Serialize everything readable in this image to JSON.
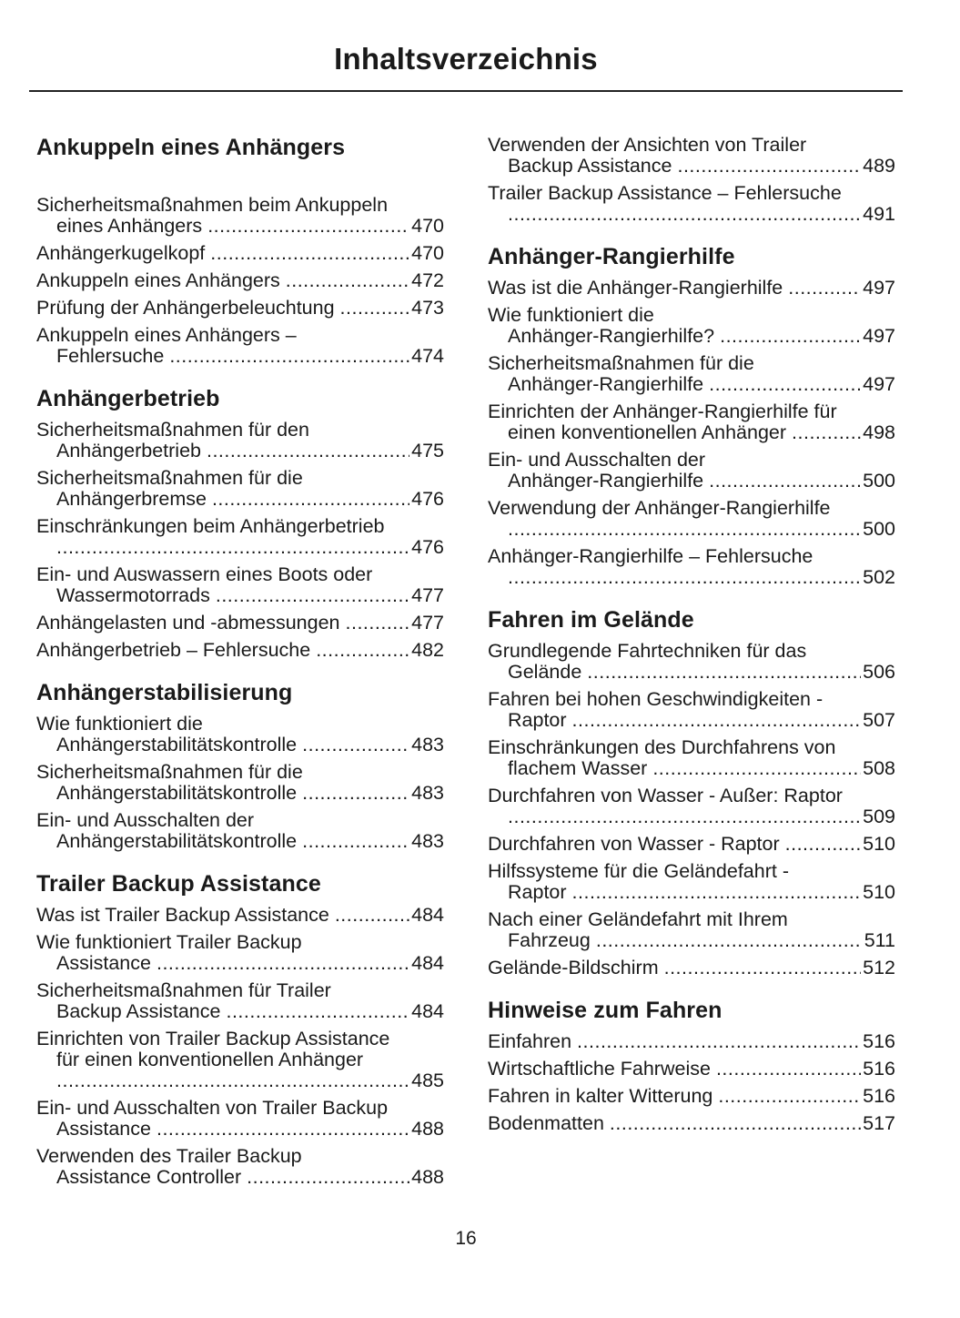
{
  "title": "Inhaltsverzeichnis",
  "page_number": "16",
  "left_column": [
    {
      "heading": "Ankuppeln eines Anhängers",
      "entries": [
        {
          "lines": [
            "Sicherheitsmaßnahmen beim Ankuppeln",
            "eines Anhängers"
          ],
          "page": "470"
        },
        {
          "lines": [
            "Anhängerkugelkopf"
          ],
          "page": "470"
        },
        {
          "lines": [
            "Ankuppeln eines Anhängers"
          ],
          "page": "472"
        },
        {
          "lines": [
            "Prüfung der Anhängerbeleuchtung"
          ],
          "page": "473"
        },
        {
          "lines": [
            "Ankuppeln eines Anhängers –",
            "Fehlersuche"
          ],
          "page": "474"
        }
      ]
    },
    {
      "heading": "Anhängerbetrieb",
      "entries": [
        {
          "lines": [
            "Sicherheitsmaßnahmen für den",
            "Anhängerbetrieb"
          ],
          "page": "475"
        },
        {
          "lines": [
            "Sicherheitsmaßnahmen für die",
            "Anhängerbremse"
          ],
          "page": "476"
        },
        {
          "lines": [
            "Einschränkungen beim Anhängerbetrieb",
            ""
          ],
          "page": "476"
        },
        {
          "lines": [
            "Ein- und Auswassern eines Boots oder",
            "Wassermotorrads"
          ],
          "page": "477"
        },
        {
          "lines": [
            "Anhängelasten und -abmessungen"
          ],
          "page": "477"
        },
        {
          "lines": [
            "Anhängerbetrieb – Fehlersuche"
          ],
          "page": "482"
        }
      ]
    },
    {
      "heading": "Anhängerstabilisierung",
      "entries": [
        {
          "lines": [
            "Wie funktioniert die",
            "Anhängerstabilitätskontrolle"
          ],
          "page": "483"
        },
        {
          "lines": [
            "Sicherheitsmaßnahmen für die",
            "Anhängerstabilitätskontrolle"
          ],
          "page": "483"
        },
        {
          "lines": [
            "Ein- und Ausschalten der",
            "Anhängerstabilitätskontrolle"
          ],
          "page": "483"
        }
      ]
    },
    {
      "heading": "Trailer Backup Assistance",
      "entries": [
        {
          "lines": [
            "Was ist Trailer Backup Assistance"
          ],
          "page": "484"
        },
        {
          "lines": [
            "Wie funktioniert Trailer Backup",
            "Assistance"
          ],
          "page": "484"
        },
        {
          "lines": [
            "Sicherheitsmaßnahmen für Trailer",
            "Backup Assistance"
          ],
          "page": "484"
        },
        {
          "lines": [
            "Einrichten von Trailer Backup Assistance",
            "für einen konventionellen Anhänger",
            ""
          ],
          "page": "485"
        },
        {
          "lines": [
            "Ein- und Ausschalten von Trailer Backup",
            "Assistance"
          ],
          "page": "488"
        },
        {
          "lines": [
            "Verwenden des Trailer Backup",
            "Assistance Controller"
          ],
          "page": "488"
        }
      ]
    }
  ],
  "right_column": [
    {
      "heading": "",
      "entries": [
        {
          "lines": [
            "Verwenden der Ansichten von Trailer",
            "Backup Assistance"
          ],
          "page": "489"
        },
        {
          "lines": [
            "Trailer Backup Assistance – Fehlersuche",
            ""
          ],
          "page": "491"
        }
      ]
    },
    {
      "heading": "Anhänger-Rangierhilfe",
      "entries": [
        {
          "lines": [
            "Was ist die Anhänger-Rangierhilfe"
          ],
          "page": "497"
        },
        {
          "lines": [
            "Wie funktioniert die",
            "Anhänger-Rangierhilfe?"
          ],
          "page": "497"
        },
        {
          "lines": [
            "Sicherheitsmaßnahmen für die",
            "Anhänger-Rangierhilfe"
          ],
          "page": "497"
        },
        {
          "lines": [
            "Einrichten der Anhänger-Rangierhilfe für",
            "einen konventionellen Anhänger"
          ],
          "page": "498"
        },
        {
          "lines": [
            "Ein- und Ausschalten der",
            "Anhänger-Rangierhilfe"
          ],
          "page": "500"
        },
        {
          "lines": [
            "Verwendung der Anhänger-Rangierhilfe",
            ""
          ],
          "page": "500"
        },
        {
          "lines": [
            "Anhänger-Rangierhilfe – Fehlersuche",
            ""
          ],
          "page": "502"
        }
      ]
    },
    {
      "heading": "Fahren im Gelände",
      "entries": [
        {
          "lines": [
            "Grundlegende Fahrtechniken für das",
            "Gelände"
          ],
          "page": "506"
        },
        {
          "lines": [
            "Fahren bei hohen Geschwindigkeiten -",
            "Raptor"
          ],
          "page": "507"
        },
        {
          "lines": [
            "Einschränkungen des Durchfahrens von",
            "flachem Wasser"
          ],
          "page": "508"
        },
        {
          "lines": [
            "Durchfahren von Wasser - Außer: Raptor",
            ""
          ],
          "page": "509"
        },
        {
          "lines": [
            "Durchfahren von Wasser - Raptor"
          ],
          "page": "510"
        },
        {
          "lines": [
            "Hilfssysteme für die Geländefahrt -",
            "Raptor"
          ],
          "page": "510"
        },
        {
          "lines": [
            "Nach einer Geländefahrt mit Ihrem",
            "Fahrzeug"
          ],
          "page": "511"
        },
        {
          "lines": [
            "Gelände-Bildschirm"
          ],
          "page": "512"
        }
      ]
    },
    {
      "heading": "Hinweise zum Fahren",
      "entries": [
        {
          "lines": [
            "Einfahren"
          ],
          "page": "516"
        },
        {
          "lines": [
            "Wirtschaftliche Fahrweise"
          ],
          "page": "516"
        },
        {
          "lines": [
            "Fahren in kalter Witterung"
          ],
          "page": "516"
        },
        {
          "lines": [
            "Bodenmatten"
          ],
          "page": "517"
        }
      ]
    }
  ]
}
